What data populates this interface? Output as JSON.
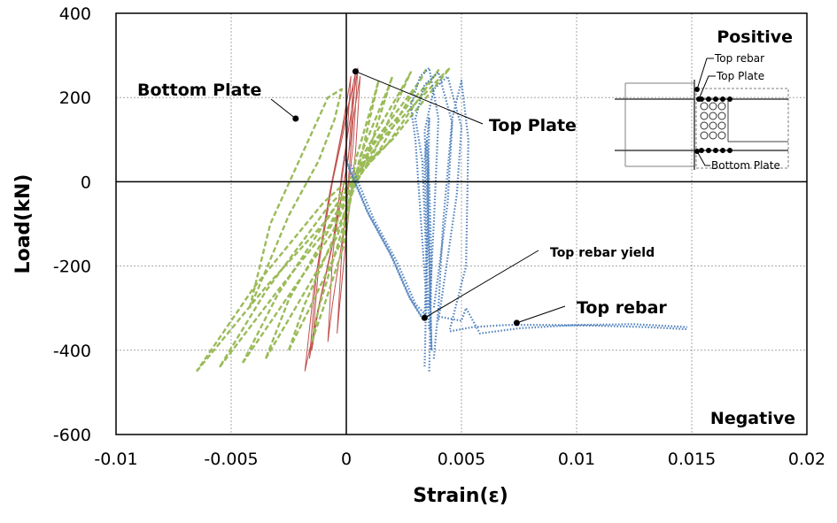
{
  "chart_data": {
    "type": "line",
    "xlabel": "Strain(ε)",
    "ylabel": "Load(kN)",
    "xlim": [
      -0.01,
      0.02
    ],
    "ylim": [
      -600,
      400
    ],
    "x_ticks": [
      -0.01,
      -0.005,
      0,
      0.005,
      0.01,
      0.015,
      0.02
    ],
    "x_tick_labels": [
      "-0.01",
      "-0.005",
      "0",
      "0.005",
      "0.01",
      "0.015",
      "0.02"
    ],
    "y_ticks": [
      -600,
      -400,
      -200,
      0,
      200,
      400
    ],
    "y_tick_labels": [
      "-600",
      "-400",
      "-200",
      "0",
      "200",
      "400"
    ],
    "grid": true,
    "corner_labels": {
      "positive": "Positive",
      "negative": "Negative"
    },
    "series": [
      {
        "key": "top_plate",
        "color": "#c0504d",
        "style": "solid",
        "loops": [
          {
            "x": [
              -0.0015,
              -0.0012,
              -0.0006,
              0.0,
              0.0004,
              0.0002,
              -0.0004,
              -0.0012,
              -0.0015
            ],
            "y": [
              -400,
              -200,
              0,
              150,
              260,
              100,
              -100,
              -300,
              -400
            ]
          },
          {
            "x": [
              -0.0018,
              -0.0014,
              -0.0008,
              -0.0002,
              0.0002,
              0.0,
              -0.0006,
              -0.0014,
              -0.0018
            ],
            "y": [
              -450,
              -250,
              -50,
              120,
              250,
              80,
              -150,
              -350,
              -450
            ]
          },
          {
            "x": [
              -0.0016,
              -0.0013,
              -0.0007,
              -0.0001,
              0.0003,
              0.0001,
              -0.0005,
              -0.0013,
              -0.0016
            ],
            "y": [
              -420,
              -220,
              -20,
              140,
              230,
              60,
              -120,
              -320,
              -420
            ]
          },
          {
            "x": [
              -0.0008,
              -0.0006,
              -0.0002,
              0.0002,
              0.0005,
              0.0003,
              -0.0001,
              -0.0006,
              -0.0008
            ],
            "y": [
              -380,
              -180,
              20,
              160,
              270,
              90,
              -110,
              -290,
              -380
            ]
          },
          {
            "x": [
              -0.0004,
              -0.0002,
              0.0001,
              0.0003,
              0.0006,
              0.0004,
              0.0,
              -0.0003,
              -0.0004
            ],
            "y": [
              -360,
              -170,
              10,
              150,
              250,
              70,
              -130,
              -300,
              -360
            ]
          }
        ]
      },
      {
        "key": "bottom_plate",
        "color": "#9bbb59",
        "style": "dashed",
        "loops": [
          {
            "x": [
              -0.0065,
              -0.0035,
              -0.001,
              0.0015,
              0.0043,
              0.0045,
              0.002,
              -0.001,
              -0.004,
              -0.0065
            ],
            "y": [
              -450,
              -250,
              -100,
              100,
              260,
              270,
              100,
              -50,
              -250,
              -450
            ]
          },
          {
            "x": [
              -0.0055,
              -0.003,
              -0.0008,
              0.0012,
              0.0038,
              0.004,
              0.0018,
              -0.0008,
              -0.0035,
              -0.0055
            ],
            "y": [
              -440,
              -260,
              -110,
              90,
              250,
              265,
              90,
              -60,
              -260,
              -440
            ]
          },
          {
            "x": [
              -0.0045,
              -0.0025,
              -0.0006,
              0.001,
              0.0032,
              0.0035,
              0.0015,
              -0.0006,
              -0.003,
              -0.0045
            ],
            "y": [
              -430,
              -270,
              -120,
              80,
              240,
              270,
              80,
              -70,
              -270,
              -430
            ]
          },
          {
            "x": [
              -0.0035,
              -0.002,
              -0.0004,
              0.0008,
              0.0025,
              0.0028,
              0.0012,
              -0.0004,
              -0.0025,
              -0.0035
            ],
            "y": [
              -420,
              -280,
              -130,
              70,
              230,
              260,
              70,
              -80,
              -280,
              -420
            ]
          },
          {
            "x": [
              -0.0025,
              -0.0015,
              -0.0002,
              0.0006,
              0.0018,
              0.002,
              0.0009,
              -0.0002,
              -0.0018,
              -0.0025
            ],
            "y": [
              -400,
              -290,
              -140,
              60,
              220,
              250,
              60,
              -90,
              -290,
              -400
            ]
          },
          {
            "x": [
              -0.0015,
              -0.001,
              -0.0001,
              0.0004,
              0.0012,
              0.0014,
              0.0006,
              -0.0001,
              -0.0012,
              -0.0015
            ],
            "y": [
              -380,
              -300,
              -150,
              50,
              200,
              240,
              50,
              -100,
              -300,
              -380
            ]
          },
          {
            "x": [
              -0.0042,
              -0.0033,
              -0.0018,
              -0.0008,
              -0.0002,
              -0.0005,
              -0.0012,
              -0.0025,
              -0.0038,
              -0.0042
            ],
            "y": [
              -300,
              -100,
              80,
              200,
              220,
              150,
              50,
              -80,
              -250,
              -300
            ]
          }
        ]
      },
      {
        "key": "top_rebar",
        "color": "#4f81bd",
        "style": "dotted",
        "loops": [
          {
            "x": [
              0.0,
              0.001,
              0.002,
              0.0028,
              0.0034
            ],
            "y": [
              50,
              -80,
              -180,
              -280,
              -330
            ]
          },
          {
            "x": [
              0.0002,
              0.0012,
              0.0022,
              0.003,
              0.0035
            ],
            "y": [
              40,
              -90,
              -190,
              -290,
              -320
            ]
          },
          {
            "x": [
              -0.0001,
              0.0009,
              0.0019,
              0.0027,
              0.0033
            ],
            "y": [
              60,
              -70,
              -170,
              -270,
              -325
            ]
          },
          {
            "x": [
              0.0034,
              0.0035,
              0.0034,
              0.0036,
              0.0035,
              0.0034
            ],
            "y": [
              -330,
              -150,
              50,
              150,
              -200,
              -440
            ]
          },
          {
            "x": [
              0.0036,
              0.0037,
              0.0036,
              0.0035,
              0.0036,
              0.0037
            ],
            "y": [
              -450,
              -200,
              0,
              100,
              -150,
              -400
            ]
          },
          {
            "x": [
              0.0035,
              0.003,
              0.0028,
              0.0032,
              0.0036,
              0.004,
              0.0038,
              0.0036
            ],
            "y": [
              -300,
              100,
              180,
              250,
              270,
              150,
              -100,
              -300
            ]
          },
          {
            "x": [
              0.0036,
              0.0033,
              0.003,
              0.0034,
              0.004,
              0.0046,
              0.0044,
              0.0038
            ],
            "y": [
              -350,
              50,
              150,
              230,
              260,
              140,
              -50,
              -300
            ]
          },
          {
            "x": [
              0.0037,
              0.0035,
              0.0034,
              0.0038,
              0.0044,
              0.005,
              0.0048,
              0.004
            ],
            "y": [
              -400,
              0,
              120,
              220,
              250,
              130,
              -30,
              -330
            ]
          },
          {
            "x": [
              0.0038,
              0.004,
              0.0042,
              0.0046,
              0.005,
              0.0053,
              0.0052,
              0.0045
            ],
            "y": [
              -420,
              -300,
              -100,
              150,
              240,
              100,
              -200,
              -350
            ]
          },
          {
            "x": [
              0.0045,
              0.0055,
              0.007,
              0.009,
              0.011,
              0.013,
              0.0148
            ],
            "y": [
              -355,
              -345,
              -340,
              -340,
              -342,
              -345,
              -350
            ]
          },
          {
            "x": [
              0.004,
              0.005,
              0.0052,
              0.0058,
              0.0075,
              0.01,
              0.0125,
              0.0148
            ],
            "y": [
              -320,
              -330,
              -300,
              -360,
              -348,
              -340,
              -338,
              -345
            ]
          }
        ]
      }
    ],
    "annotations": [
      {
        "key": "bottom_plate",
        "text": "Bottom Plate",
        "point": [
          -0.0022,
          150
        ],
        "size": 19
      },
      {
        "key": "top_plate",
        "text": "Top Plate",
        "point": [
          0.0004,
          262
        ],
        "size": 19
      },
      {
        "key": "top_rebar_yield",
        "text": "Top rebar yield",
        "point": [
          0.0034,
          -323
        ],
        "size": 14
      },
      {
        "key": "top_rebar",
        "text": "Top rebar",
        "point": [
          0.0074,
          -335
        ],
        "size": 19
      }
    ],
    "inset": {
      "title": "Positive",
      "labels": [
        "Top rebar",
        "Top Plate",
        "Bottom Plate"
      ]
    }
  }
}
